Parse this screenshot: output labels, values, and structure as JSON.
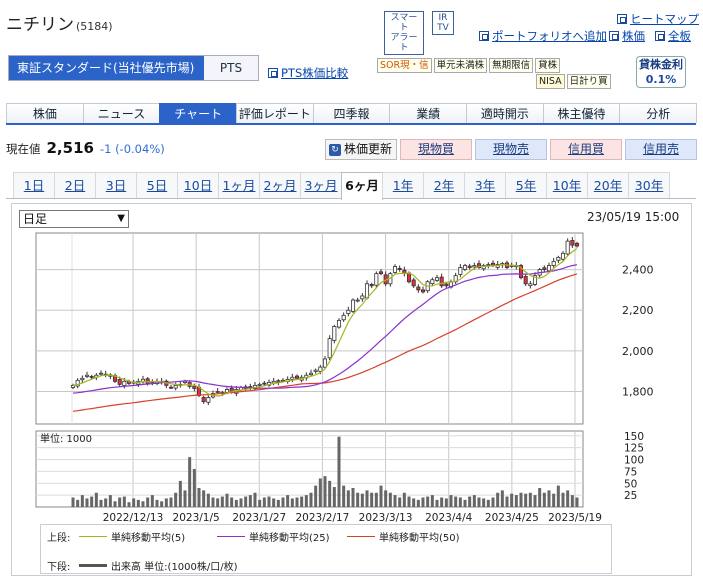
{
  "header": {
    "company": "ニチリン",
    "code": "(5184)",
    "smart_alert": [
      "スマート",
      "アラート"
    ],
    "ir_tv": [
      "IR",
      "TV"
    ],
    "links": {
      "heatmap": "ヒートマップ",
      "portfolio": "ポートフォリオへ追加",
      "stock_price": "株価",
      "full_board": "全板",
      "pts_compare": "PTS株価比較"
    }
  },
  "market": {
    "selected": "東証スタンダード(当社優先市場)",
    "pts": "PTS"
  },
  "tags": {
    "row1": [
      "SOR現・信",
      "単元未満株",
      "無期限信",
      "貸株"
    ],
    "row2": [
      "NISA",
      "日計り買"
    ],
    "rate_label": "貸株金利",
    "rate_value": "0.1%"
  },
  "nav_tabs": [
    "株価",
    "ニュース",
    "チャート",
    "評価レポート",
    "四季報",
    "業績",
    "適時開示",
    "株主優待",
    "分析"
  ],
  "nav_active": 2,
  "price": {
    "label": "現在値",
    "value": "2,516",
    "change": "-1 (-0.04%)"
  },
  "buttons": {
    "refresh": "株価更新",
    "spot_buy": "現物買",
    "spot_sell": "現物売",
    "margin_buy": "信用買",
    "margin_sell": "信用売"
  },
  "periods": [
    "1日",
    "2日",
    "3日",
    "5日",
    "10日",
    "1ヶ月",
    "2ヶ月",
    "3ヶ月",
    "6ヶ月",
    "1年",
    "2年",
    "3年",
    "5年",
    "10年",
    "20年",
    "30年"
  ],
  "period_active": 8,
  "chart_controls": {
    "interval": "日足",
    "timestamp": "23/05/19 15:00"
  },
  "colors": {
    "ma5": "#a8b520",
    "ma25": "#8a2fd0",
    "ma50": "#d8402a",
    "up": "#ffffff",
    "down": "#e03040",
    "volume": "#666666"
  },
  "chart_data": {
    "type": "candlestick",
    "price_axis_ticks": [
      "2,400",
      "2,200",
      "2,000",
      "1,800"
    ],
    "price_ylim": [
      1640,
      2580
    ],
    "volume_unit": "単位: 1000",
    "volume_axis_ticks": [
      "150",
      "125",
      "100",
      "75",
      "50",
      "25"
    ],
    "volume_ylim": [
      0,
      160
    ],
    "date_labels": [
      "2022/12/13",
      "2023/1/5",
      "2023/1/27",
      "2023/2/17",
      "2023/3/13",
      "2023/4/4",
      "2023/4/25",
      "2023/5/19"
    ],
    "close": [
      1830,
      1855,
      1865,
      1880,
      1870,
      1880,
      1890,
      1885,
      1875,
      1850,
      1835,
      1850,
      1840,
      1845,
      1850,
      1860,
      1840,
      1845,
      1850,
      1845,
      1830,
      1820,
      1830,
      1835,
      1850,
      1825,
      1815,
      1780,
      1750,
      1770,
      1790,
      1800,
      1795,
      1810,
      1800,
      1810,
      1820,
      1815,
      1820,
      1830,
      1835,
      1840,
      1845,
      1850,
      1845,
      1855,
      1860,
      1870,
      1865,
      1870,
      1880,
      1890,
      1905,
      1920,
      1960,
      2060,
      2120,
      2150,
      2175,
      2200,
      2250,
      2250,
      2270,
      2330,
      2320,
      2380,
      2380,
      2330,
      2380,
      2415,
      2400,
      2380,
      2340,
      2320,
      2300,
      2290,
      2340,
      2350,
      2360,
      2320,
      2320,
      2340,
      2370,
      2410,
      2420,
      2410,
      2420,
      2410,
      2420,
      2425,
      2420,
      2425,
      2430,
      2410,
      2420,
      2420,
      2360,
      2330,
      2330,
      2370,
      2400,
      2400,
      2420,
      2440,
      2460,
      2480,
      2540,
      2520,
      2516
    ],
    "ma_legend": {
      "upper_label": "上段:",
      "ma5": "単純移動平均(5)",
      "ma25": "単純移動平均(25)",
      "ma50": "単純移動平均(50)",
      "lower_label": "下段:",
      "volume": "出来高 単位:(1000株/口/枚)"
    },
    "volume": [
      20,
      15,
      25,
      18,
      22,
      30,
      15,
      18,
      25,
      12,
      20,
      22,
      10,
      18,
      15,
      12,
      20,
      25,
      15,
      12,
      18,
      20,
      30,
      55,
      35,
      105,
      80,
      40,
      35,
      28,
      20,
      18,
      22,
      28,
      20,
      15,
      18,
      22,
      25,
      30,
      15,
      20,
      22,
      18,
      15,
      20,
      25,
      18,
      20,
      22,
      25,
      30,
      45,
      60,
      65,
      55,
      42,
      148,
      45,
      35,
      40,
      30,
      28,
      35,
      30,
      30,
      45,
      35,
      30,
      25,
      20,
      30,
      22,
      18,
      15,
      20,
      22,
      25,
      15,
      20,
      18,
      25,
      22,
      20,
      15,
      22,
      25,
      20,
      18,
      15,
      20,
      30,
      35,
      22,
      28,
      25,
      30,
      28,
      30,
      25,
      40,
      30,
      35,
      28,
      45,
      30,
      35,
      25,
      20
    ]
  }
}
